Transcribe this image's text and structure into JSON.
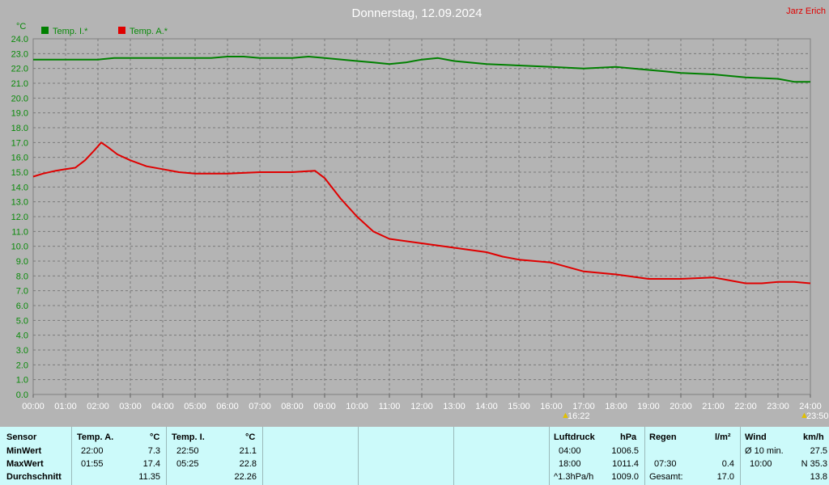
{
  "header": {
    "title": "Donnerstag, 12.09.2024",
    "author": "Jarz Erich"
  },
  "chart_data": {
    "type": "line",
    "y_unit": "°C",
    "ylim": [
      0,
      24
    ],
    "y_ticks": [
      "0.0",
      "1.0",
      "2.0",
      "3.0",
      "4.0",
      "5.0",
      "6.0",
      "7.0",
      "8.0",
      "9.0",
      "10.0",
      "11.0",
      "12.0",
      "13.0",
      "14.0",
      "15.0",
      "16.0",
      "17.0",
      "18.0",
      "19.0",
      "20.0",
      "21.0",
      "22.0",
      "23.0",
      "24.0"
    ],
    "x_ticks": [
      "00:00",
      "01:00",
      "02:00",
      "03:00",
      "04:00",
      "05:00",
      "06:00",
      "07:00",
      "08:00",
      "09:00",
      "10:00",
      "11:00",
      "12:00",
      "13:00",
      "14:00",
      "15:00",
      "16:00",
      "17:00",
      "18:00",
      "19:00",
      "20:00",
      "21:00",
      "22:00",
      "23:00",
      "24:00"
    ],
    "xlim": [
      0,
      24
    ],
    "grid": true,
    "legend_position": "top-left",
    "markers": [
      "16:22",
      "23:50"
    ],
    "series": [
      {
        "name": "Temp. I.*",
        "color": "#008000",
        "x": [
          0,
          1,
          2,
          2.5,
          3,
          4,
          5,
          5.5,
          6,
          6.5,
          7,
          8,
          8.5,
          9,
          10,
          10.5,
          11,
          11.5,
          12,
          12.5,
          13,
          14,
          15,
          16,
          17,
          18,
          19,
          19.5,
          20,
          21,
          22,
          23,
          23.5,
          24
        ],
        "values": [
          22.6,
          22.6,
          22.6,
          22.7,
          22.7,
          22.7,
          22.7,
          22.7,
          22.8,
          22.8,
          22.7,
          22.7,
          22.8,
          22.7,
          22.5,
          22.4,
          22.3,
          22.4,
          22.6,
          22.7,
          22.5,
          22.3,
          22.2,
          22.1,
          22.0,
          22.1,
          21.9,
          21.8,
          21.7,
          21.6,
          21.4,
          21.3,
          21.1,
          21.1
        ]
      },
      {
        "name": "Temp. A.*",
        "color": "#e00000",
        "x": [
          0,
          0.3,
          0.7,
          1.0,
          1.3,
          1.6,
          1.9,
          2.1,
          2.3,
          2.6,
          3.0,
          3.5,
          4.0,
          4.5,
          5.0,
          6.0,
          7.0,
          8.0,
          8.7,
          9.0,
          9.5,
          10.0,
          10.5,
          11.0,
          12.0,
          13.0,
          14.0,
          14.5,
          15.0,
          15.5,
          16.0,
          16.5,
          17.0,
          18.0,
          19.0,
          20.0,
          21.0,
          22.0,
          22.5,
          23.0,
          23.5,
          24.0
        ],
        "values": [
          14.7,
          14.9,
          15.1,
          15.2,
          15.3,
          15.8,
          16.5,
          17.0,
          16.7,
          16.2,
          15.8,
          15.4,
          15.2,
          15.0,
          14.9,
          14.9,
          15.0,
          15.0,
          15.1,
          14.6,
          13.2,
          12.0,
          11.0,
          10.5,
          10.2,
          9.9,
          9.6,
          9.3,
          9.1,
          9.0,
          8.9,
          8.6,
          8.3,
          8.1,
          7.8,
          7.8,
          7.9,
          7.5,
          7.5,
          7.6,
          7.6,
          7.5
        ]
      }
    ]
  },
  "stats": {
    "sensor": {
      "header": "Sensor",
      "rows": [
        "MinWert",
        "MaxWert",
        "Durchschnitt"
      ]
    },
    "temp_a": {
      "header": "Temp. A.",
      "unit": "°C",
      "min_time": "22:00",
      "min_val": "7.3",
      "max_time": "01:55",
      "max_val": "17.4",
      "avg": "11.35"
    },
    "temp_i": {
      "header": "Temp. I.",
      "unit": "°C",
      "min_time": "22:50",
      "min_val": "21.1",
      "max_time": "05:25",
      "max_val": "22.8",
      "avg": "22.26"
    },
    "pressure": {
      "header": "Luftdruck",
      "unit": "hPa",
      "min_time": "04:00",
      "min_val": "1006.5",
      "max_time": "18:00",
      "max_val": "1011.4",
      "avg_label": "^1.3hPa/h",
      "avg": "1009.0"
    },
    "rain": {
      "header": "Regen",
      "unit": "l/m²",
      "max_time": "07:30",
      "max_val": "0.4",
      "total_label": "Gesamt:",
      "total": "17.0"
    },
    "wind": {
      "header": "Wind",
      "unit": "km/h",
      "min_label": "Ø 10 min.",
      "min_val": "27.5",
      "max_time": "10:00",
      "max_val": "N 35.3",
      "avg": "13.8"
    }
  }
}
